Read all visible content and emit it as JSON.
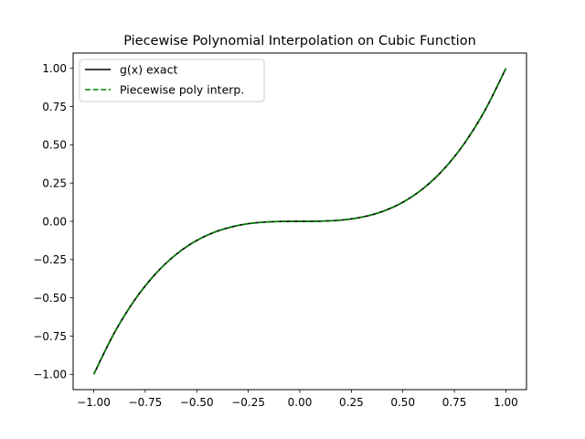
{
  "chart_data": {
    "type": "line",
    "title": "Piecewise Polynomial Interpolation on Cubic Function",
    "xlabel": "",
    "ylabel": "",
    "xlim": [
      -1.1,
      1.1
    ],
    "ylim": [
      -1.1,
      1.1
    ],
    "xticks": [
      -1.0,
      -0.75,
      -0.5,
      -0.25,
      0.0,
      0.25,
      0.5,
      0.75,
      1.0
    ],
    "xtick_labels": [
      "−1.00",
      "−0.75",
      "−0.50",
      "−0.25",
      "0.00",
      "0.25",
      "0.50",
      "0.75",
      "1.00"
    ],
    "yticks": [
      -1.0,
      -0.75,
      -0.5,
      -0.25,
      0.0,
      0.25,
      0.5,
      0.75,
      1.0
    ],
    "ytick_labels": [
      "−1.00",
      "−0.75",
      "−0.50",
      "−0.25",
      "0.00",
      "0.25",
      "0.50",
      "0.75",
      "1.00"
    ],
    "grid": false,
    "legend_position": "top-left",
    "series": [
      {
        "name": "g(x) exact",
        "color": "#000000",
        "style": "solid",
        "x": [
          -1.0,
          -0.9,
          -0.8,
          -0.7,
          -0.6,
          -0.5,
          -0.4,
          -0.3,
          -0.2,
          -0.1,
          0.0,
          0.1,
          0.2,
          0.3,
          0.4,
          0.5,
          0.6,
          0.7,
          0.8,
          0.9,
          1.0
        ],
        "y": [
          -1.0,
          -0.729,
          -0.512,
          -0.343,
          -0.216,
          -0.125,
          -0.064,
          -0.027,
          -0.008,
          -0.001,
          0.0,
          0.001,
          0.008,
          0.027,
          0.064,
          0.125,
          0.216,
          0.343,
          0.512,
          0.729,
          1.0
        ]
      },
      {
        "name": "Piecewise poly interp.",
        "color": "#008000",
        "style": "dashed",
        "x": [
          -1.0,
          -0.9,
          -0.8,
          -0.7,
          -0.6,
          -0.5,
          -0.4,
          -0.3,
          -0.2,
          -0.1,
          0.0,
          0.1,
          0.2,
          0.3,
          0.4,
          0.5,
          0.6,
          0.7,
          0.8,
          0.9,
          1.0
        ],
        "y": [
          -1.0,
          -0.729,
          -0.512,
          -0.343,
          -0.216,
          -0.125,
          -0.064,
          -0.027,
          -0.008,
          -0.001,
          0.0,
          0.001,
          0.008,
          0.027,
          0.064,
          0.125,
          0.216,
          0.343,
          0.512,
          0.729,
          1.0
        ]
      }
    ]
  }
}
